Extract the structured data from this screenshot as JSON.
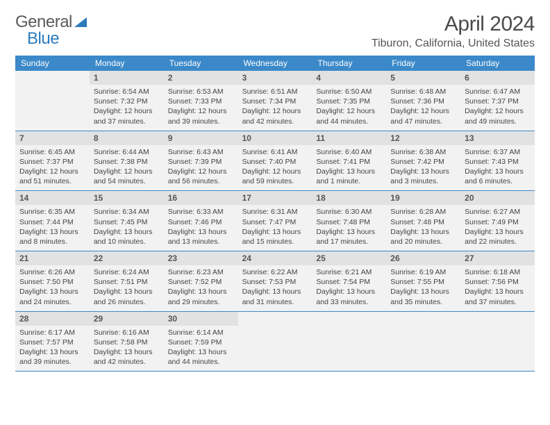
{
  "logo": {
    "t1": "General",
    "t2": "Blue"
  },
  "title": "April 2024",
  "location": "Tiburon, California, United States",
  "colors": {
    "header_bg": "#3b89c9",
    "daynum_bg": "#e2e2e2",
    "week_bg": "#f2f2f2",
    "border": "#3b89c9",
    "text": "#444444"
  },
  "dow": [
    "Sunday",
    "Monday",
    "Tuesday",
    "Wednesday",
    "Thursday",
    "Friday",
    "Saturday"
  ],
  "weeks": [
    [
      null,
      {
        "n": "1",
        "sr": "Sunrise: 6:54 AM",
        "ss": "Sunset: 7:32 PM",
        "d1": "Daylight: 12 hours",
        "d2": "and 37 minutes."
      },
      {
        "n": "2",
        "sr": "Sunrise: 6:53 AM",
        "ss": "Sunset: 7:33 PM",
        "d1": "Daylight: 12 hours",
        "d2": "and 39 minutes."
      },
      {
        "n": "3",
        "sr": "Sunrise: 6:51 AM",
        "ss": "Sunset: 7:34 PM",
        "d1": "Daylight: 12 hours",
        "d2": "and 42 minutes."
      },
      {
        "n": "4",
        "sr": "Sunrise: 6:50 AM",
        "ss": "Sunset: 7:35 PM",
        "d1": "Daylight: 12 hours",
        "d2": "and 44 minutes."
      },
      {
        "n": "5",
        "sr": "Sunrise: 6:48 AM",
        "ss": "Sunset: 7:36 PM",
        "d1": "Daylight: 12 hours",
        "d2": "and 47 minutes."
      },
      {
        "n": "6",
        "sr": "Sunrise: 6:47 AM",
        "ss": "Sunset: 7:37 PM",
        "d1": "Daylight: 12 hours",
        "d2": "and 49 minutes."
      }
    ],
    [
      {
        "n": "7",
        "sr": "Sunrise: 6:45 AM",
        "ss": "Sunset: 7:37 PM",
        "d1": "Daylight: 12 hours",
        "d2": "and 51 minutes."
      },
      {
        "n": "8",
        "sr": "Sunrise: 6:44 AM",
        "ss": "Sunset: 7:38 PM",
        "d1": "Daylight: 12 hours",
        "d2": "and 54 minutes."
      },
      {
        "n": "9",
        "sr": "Sunrise: 6:43 AM",
        "ss": "Sunset: 7:39 PM",
        "d1": "Daylight: 12 hours",
        "d2": "and 56 minutes."
      },
      {
        "n": "10",
        "sr": "Sunrise: 6:41 AM",
        "ss": "Sunset: 7:40 PM",
        "d1": "Daylight: 12 hours",
        "d2": "and 59 minutes."
      },
      {
        "n": "11",
        "sr": "Sunrise: 6:40 AM",
        "ss": "Sunset: 7:41 PM",
        "d1": "Daylight: 13 hours",
        "d2": "and 1 minute."
      },
      {
        "n": "12",
        "sr": "Sunrise: 6:38 AM",
        "ss": "Sunset: 7:42 PM",
        "d1": "Daylight: 13 hours",
        "d2": "and 3 minutes."
      },
      {
        "n": "13",
        "sr": "Sunrise: 6:37 AM",
        "ss": "Sunset: 7:43 PM",
        "d1": "Daylight: 13 hours",
        "d2": "and 6 minutes."
      }
    ],
    [
      {
        "n": "14",
        "sr": "Sunrise: 6:35 AM",
        "ss": "Sunset: 7:44 PM",
        "d1": "Daylight: 13 hours",
        "d2": "and 8 minutes."
      },
      {
        "n": "15",
        "sr": "Sunrise: 6:34 AM",
        "ss": "Sunset: 7:45 PM",
        "d1": "Daylight: 13 hours",
        "d2": "and 10 minutes."
      },
      {
        "n": "16",
        "sr": "Sunrise: 6:33 AM",
        "ss": "Sunset: 7:46 PM",
        "d1": "Daylight: 13 hours",
        "d2": "and 13 minutes."
      },
      {
        "n": "17",
        "sr": "Sunrise: 6:31 AM",
        "ss": "Sunset: 7:47 PM",
        "d1": "Daylight: 13 hours",
        "d2": "and 15 minutes."
      },
      {
        "n": "18",
        "sr": "Sunrise: 6:30 AM",
        "ss": "Sunset: 7:48 PM",
        "d1": "Daylight: 13 hours",
        "d2": "and 17 minutes."
      },
      {
        "n": "19",
        "sr": "Sunrise: 6:28 AM",
        "ss": "Sunset: 7:48 PM",
        "d1": "Daylight: 13 hours",
        "d2": "and 20 minutes."
      },
      {
        "n": "20",
        "sr": "Sunrise: 6:27 AM",
        "ss": "Sunset: 7:49 PM",
        "d1": "Daylight: 13 hours",
        "d2": "and 22 minutes."
      }
    ],
    [
      {
        "n": "21",
        "sr": "Sunrise: 6:26 AM",
        "ss": "Sunset: 7:50 PM",
        "d1": "Daylight: 13 hours",
        "d2": "and 24 minutes."
      },
      {
        "n": "22",
        "sr": "Sunrise: 6:24 AM",
        "ss": "Sunset: 7:51 PM",
        "d1": "Daylight: 13 hours",
        "d2": "and 26 minutes."
      },
      {
        "n": "23",
        "sr": "Sunrise: 6:23 AM",
        "ss": "Sunset: 7:52 PM",
        "d1": "Daylight: 13 hours",
        "d2": "and 29 minutes."
      },
      {
        "n": "24",
        "sr": "Sunrise: 6:22 AM",
        "ss": "Sunset: 7:53 PM",
        "d1": "Daylight: 13 hours",
        "d2": "and 31 minutes."
      },
      {
        "n": "25",
        "sr": "Sunrise: 6:21 AM",
        "ss": "Sunset: 7:54 PM",
        "d1": "Daylight: 13 hours",
        "d2": "and 33 minutes."
      },
      {
        "n": "26",
        "sr": "Sunrise: 6:19 AM",
        "ss": "Sunset: 7:55 PM",
        "d1": "Daylight: 13 hours",
        "d2": "and 35 minutes."
      },
      {
        "n": "27",
        "sr": "Sunrise: 6:18 AM",
        "ss": "Sunset: 7:56 PM",
        "d1": "Daylight: 13 hours",
        "d2": "and 37 minutes."
      }
    ],
    [
      {
        "n": "28",
        "sr": "Sunrise: 6:17 AM",
        "ss": "Sunset: 7:57 PM",
        "d1": "Daylight: 13 hours",
        "d2": "and 39 minutes."
      },
      {
        "n": "29",
        "sr": "Sunrise: 6:16 AM",
        "ss": "Sunset: 7:58 PM",
        "d1": "Daylight: 13 hours",
        "d2": "and 42 minutes."
      },
      {
        "n": "30",
        "sr": "Sunrise: 6:14 AM",
        "ss": "Sunset: 7:59 PM",
        "d1": "Daylight: 13 hours",
        "d2": "and 44 minutes."
      },
      null,
      null,
      null,
      null
    ]
  ]
}
